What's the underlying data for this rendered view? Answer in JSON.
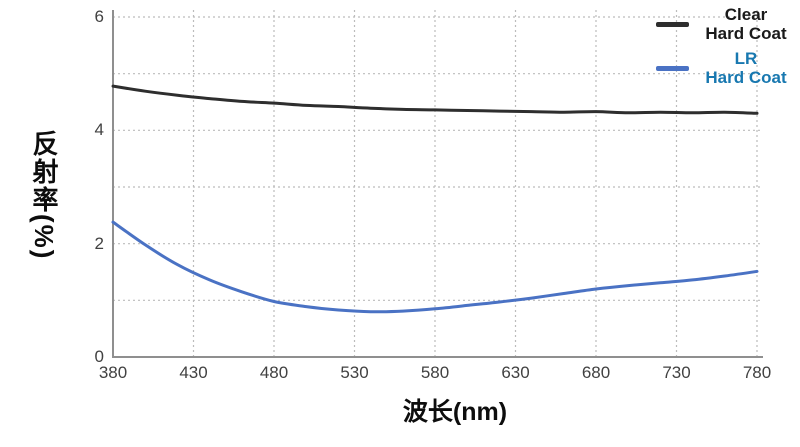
{
  "chart_data": {
    "type": "line",
    "title": "",
    "xlabel": "波长(nm)",
    "ylabel": "反射率(%)",
    "xlim": [
      380,
      780
    ],
    "ylim": [
      0,
      6
    ],
    "x_ticks": [
      380,
      430,
      480,
      530,
      580,
      630,
      680,
      730,
      780
    ],
    "y_ticks": [
      0,
      2,
      4,
      6
    ],
    "grid": {
      "style": "dashed",
      "x_lines": [
        430,
        480,
        530,
        580,
        630,
        680,
        730,
        780
      ],
      "y_lines": [
        1,
        2,
        3,
        4,
        5,
        6
      ]
    },
    "x": [
      380,
      400,
      420,
      440,
      460,
      480,
      500,
      520,
      540,
      560,
      580,
      600,
      620,
      640,
      660,
      680,
      700,
      720,
      740,
      760,
      780
    ],
    "series": [
      {
        "name": "Clear Hard Coat",
        "color": "#2e2e2e",
        "values": [
          4.78,
          4.69,
          4.62,
          4.56,
          4.51,
          4.48,
          4.44,
          4.42,
          4.39,
          4.37,
          4.36,
          4.35,
          4.34,
          4.33,
          4.32,
          4.33,
          4.31,
          4.32,
          4.31,
          4.32,
          4.3
        ]
      },
      {
        "name": "LR Hard Coat",
        "color": "#4a72c4",
        "values": [
          2.38,
          1.98,
          1.63,
          1.36,
          1.15,
          0.98,
          0.89,
          0.83,
          0.8,
          0.81,
          0.85,
          0.91,
          0.97,
          1.04,
          1.12,
          1.2,
          1.26,
          1.31,
          1.36,
          1.43,
          1.51
        ]
      }
    ],
    "legend": {
      "position": "top-right",
      "items": [
        {
          "line1": "Clear",
          "line2": "Hard Coat",
          "text_color": "#1a1a1a",
          "swatch_color": "#2e2e2e"
        },
        {
          "line1": "LR",
          "line2": "Hard Coat",
          "text_color": "#1878b0",
          "swatch_color": "#4a72c4"
        }
      ]
    }
  },
  "colors": {
    "background": "#ffffff",
    "axis": "#8f8f8f",
    "grid": "#bcbcbc",
    "tick_text": "#414141"
  }
}
